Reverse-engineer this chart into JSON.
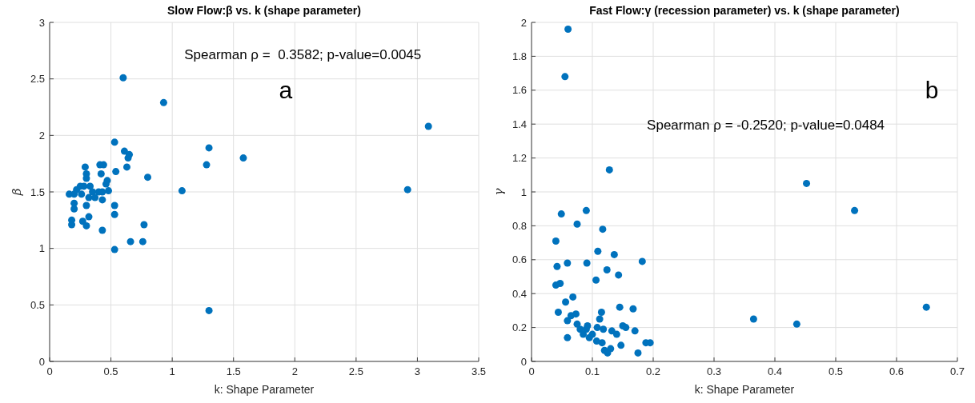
{
  "chart_data": [
    {
      "type": "scatter",
      "title": "Slow Flow:β vs. k (shape parameter)",
      "xlabel": "k: Shape Parameter",
      "ylabel": "β",
      "annotations": [
        "Spearman ρ =  0.3582; p-value=0.0045",
        "a"
      ],
      "xlim": [
        0,
        3.5
      ],
      "ylim": [
        0,
        3
      ],
      "xticks": [
        0,
        0.5,
        1,
        1.5,
        2,
        2.5,
        3,
        3.5
      ],
      "yticks": [
        0,
        0.5,
        1,
        1.5,
        2,
        2.5,
        3
      ],
      "grid": true,
      "marker": "circle",
      "series": [
        {
          "color": "#0072bd",
          "x": [
            0.6,
            0.93,
            3.09,
            0.53,
            1.3,
            0.61,
            0.65,
            0.64,
            1.28,
            1.58,
            0.63,
            0.41,
            0.44,
            0.29,
            0.8,
            0.3,
            0.42,
            0.3,
            0.54,
            0.47,
            0.46,
            0.22,
            0.25,
            0.28,
            0.33,
            0.35,
            0.4,
            0.43,
            0.48,
            0.16,
            0.2,
            0.26,
            0.32,
            0.37,
            1.08,
            2.92,
            0.43,
            0.2,
            0.3,
            0.2,
            0.53,
            0.53,
            0.32,
            0.18,
            0.18,
            0.27,
            0.3,
            0.77,
            0.43,
            0.66,
            0.76,
            0.53,
            1.3
          ],
          "values": [
            2.51,
            2.29,
            2.08,
            1.94,
            1.89,
            1.86,
            1.83,
            1.8,
            1.74,
            1.8,
            1.72,
            1.74,
            1.74,
            1.72,
            1.63,
            1.66,
            1.66,
            1.62,
            1.68,
            1.6,
            1.57,
            1.52,
            1.55,
            1.55,
            1.55,
            1.5,
            1.5,
            1.5,
            1.51,
            1.48,
            1.48,
            1.48,
            1.45,
            1.45,
            1.51,
            1.52,
            1.43,
            1.4,
            1.38,
            1.35,
            1.38,
            1.3,
            1.28,
            1.25,
            1.21,
            1.24,
            1.2,
            1.21,
            1.16,
            1.06,
            1.06,
            0.99,
            0.45
          ]
        }
      ]
    },
    {
      "type": "scatter",
      "title": "Fast Flow:γ (recession parameter) vs. k (shape parameter)",
      "xlabel": "k: Shape Parameter",
      "ylabel": "γ",
      "annotations": [
        "Spearman ρ = -0.2520; p-value=0.0484",
        "b"
      ],
      "xlim": [
        0,
        0.7
      ],
      "ylim": [
        0,
        2
      ],
      "xticks": [
        0,
        0.1,
        0.2,
        0.3,
        0.4,
        0.5,
        0.6,
        0.7
      ],
      "yticks": [
        0,
        0.2,
        0.4,
        0.6,
        0.8,
        1,
        1.2,
        1.4,
        1.6,
        1.8,
        2
      ],
      "grid": true,
      "marker": "circle",
      "series": [
        {
          "color": "#0072bd",
          "x": [
            0.06,
            0.055,
            0.128,
            0.452,
            0.531,
            0.049,
            0.09,
            0.075,
            0.117,
            0.04,
            0.109,
            0.136,
            0.182,
            0.042,
            0.059,
            0.091,
            0.124,
            0.143,
            0.106,
            0.04,
            0.047,
            0.068,
            0.056,
            0.044,
            0.065,
            0.073,
            0.115,
            0.145,
            0.167,
            0.649,
            0.365,
            0.436,
            0.059,
            0.075,
            0.08,
            0.092,
            0.1,
            0.108,
            0.112,
            0.118,
            0.085,
            0.095,
            0.107,
            0.116,
            0.132,
            0.14,
            0.15,
            0.155,
            0.17,
            0.12,
            0.13,
            0.125,
            0.147,
            0.175,
            0.188,
            0.195,
            0.059,
            0.09
          ],
          "values": [
            1.96,
            1.68,
            1.13,
            1.05,
            0.89,
            0.87,
            0.89,
            0.81,
            0.78,
            0.71,
            0.65,
            0.63,
            0.59,
            0.56,
            0.58,
            0.58,
            0.54,
            0.51,
            0.48,
            0.45,
            0.46,
            0.38,
            0.35,
            0.29,
            0.27,
            0.28,
            0.29,
            0.32,
            0.31,
            0.32,
            0.25,
            0.22,
            0.24,
            0.22,
            0.19,
            0.21,
            0.16,
            0.2,
            0.25,
            0.19,
            0.16,
            0.14,
            0.12,
            0.11,
            0.18,
            0.16,
            0.21,
            0.2,
            0.18,
            0.065,
            0.075,
            0.05,
            0.095,
            0.05,
            0.11,
            0.11,
            0.14,
            0.19
          ]
        }
      ]
    }
  ]
}
